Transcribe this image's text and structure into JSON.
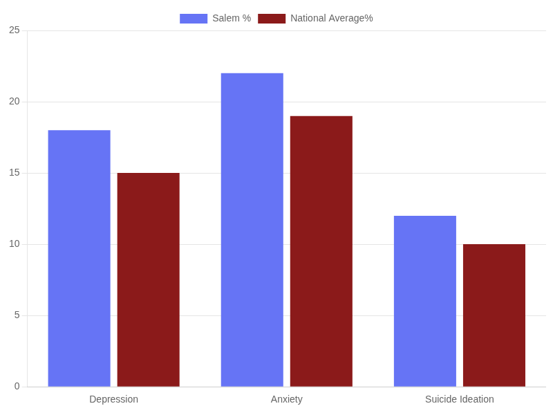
{
  "chart_data": {
    "type": "bar",
    "categories": [
      "Depression",
      "Anxiety",
      "Suicide Ideation"
    ],
    "series": [
      {
        "name": "Salem %",
        "color": "#6674f5",
        "values": [
          18,
          22,
          12
        ]
      },
      {
        "name": "National Average%",
        "color": "#8b1a1a",
        "values": [
          15,
          19,
          10
        ]
      }
    ],
    "ylim": [
      0,
      25
    ],
    "yticks": [
      0,
      5,
      10,
      15,
      20,
      25
    ],
    "grid": true,
    "legend": "top"
  }
}
